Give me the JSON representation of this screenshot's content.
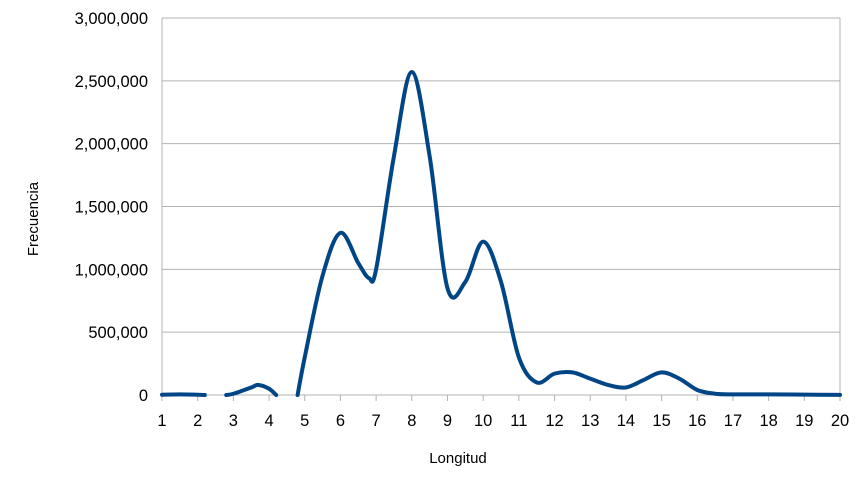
{
  "chart_data": {
    "type": "line",
    "smooth": true,
    "title": "",
    "xlabel": "Longitud",
    "ylabel": "Frecuencia",
    "xlim": [
      1,
      20
    ],
    "ylim": [
      0,
      3000000
    ],
    "grid": "horizontal",
    "legend": "none",
    "line_color": "#004586",
    "grid_color": "#b3b3b3",
    "x_ticks": [
      "1",
      "2",
      "3",
      "4",
      "5",
      "6",
      "7",
      "8",
      "9",
      "10",
      "11",
      "12",
      "13",
      "14",
      "15",
      "16",
      "17",
      "18",
      "19",
      "20"
    ],
    "y_ticks": [
      "0",
      "500,000",
      "1,000,000",
      "1,500,000",
      "2,000,000",
      "2,500,000",
      "3,000,000"
    ],
    "y_tick_values": [
      0,
      500000,
      1000000,
      1500000,
      2000000,
      2500000,
      3000000
    ],
    "series": [
      {
        "x": [
          1,
          1.5,
          2,
          2.2,
          2.8,
          3,
          3.5,
          3.7,
          4,
          4.2,
          4.8,
          5,
          5.5,
          6,
          6.5,
          6.8,
          7,
          7.5,
          8,
          8.5,
          9,
          9.5,
          10,
          10.5,
          11,
          11.5,
          12,
          12.5,
          13,
          13.5,
          14,
          14.5,
          15,
          15.5,
          16,
          16.5,
          17,
          18,
          19,
          20
        ],
        "y": [
          2000,
          5000,
          2000,
          0,
          0,
          10000,
          60000,
          80000,
          50000,
          0,
          0,
          300000,
          950000,
          1290000,
          1050000,
          930000,
          1000000,
          1900000,
          2570000,
          1900000,
          850000,
          900000,
          1220000,
          900000,
          300000,
          100000,
          170000,
          180000,
          130000,
          80000,
          60000,
          120000,
          180000,
          130000,
          40000,
          10000,
          5000,
          5000,
          3000,
          1000
        ]
      }
    ],
    "segment_breaks": [
      4,
      10
    ]
  }
}
